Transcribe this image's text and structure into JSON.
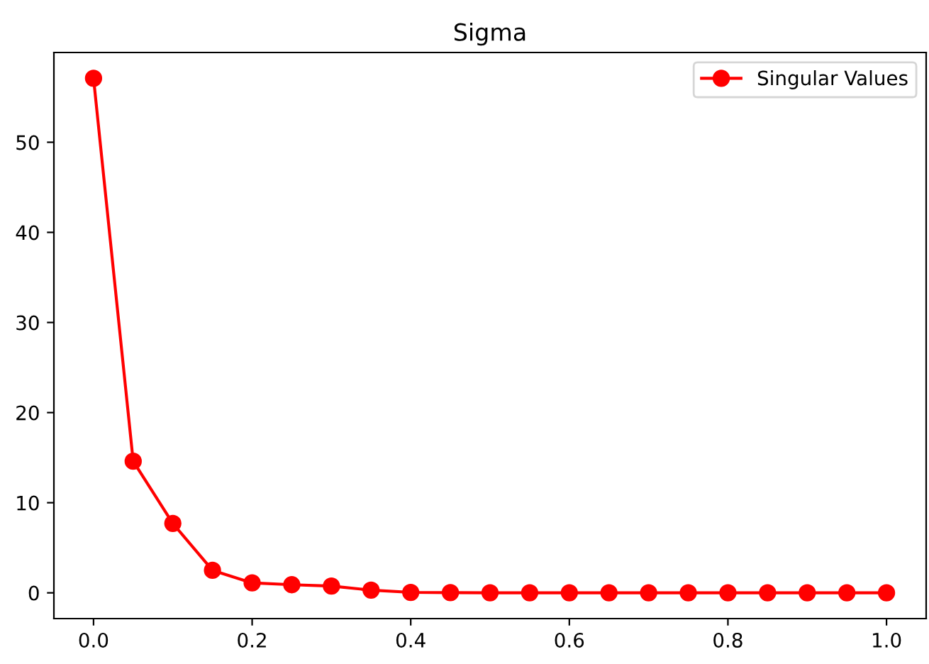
{
  "chart_data": {
    "type": "line",
    "title": "Sigma",
    "x": [
      0.0,
      0.05,
      0.1,
      0.15,
      0.2,
      0.25,
      0.3,
      0.35,
      0.4,
      0.45,
      0.5,
      0.55,
      0.6,
      0.65,
      0.7,
      0.75,
      0.8,
      0.85,
      0.9,
      0.95,
      1.0
    ],
    "series": [
      {
        "name": "Singular Values",
        "color": "#ff0000",
        "values": [
          57.1,
          14.6,
          7.7,
          2.5,
          1.1,
          0.9,
          0.75,
          0.3,
          0.05,
          0.02,
          0.01,
          0.01,
          0.01,
          0.0,
          0.0,
          0.0,
          0.0,
          0.0,
          0.0,
          0.0,
          0.0
        ]
      }
    ],
    "xlim": [
      -0.05,
      1.05
    ],
    "xticks": [
      {
        "value": 0.0,
        "label": "0.0"
      },
      0.2,
      0.4,
      0.6,
      0.8,
      {
        "value": 1.0,
        "label": "1.0"
      }
    ],
    "ylim": [
      -2.86,
      59.96
    ],
    "yticks": [
      0,
      10,
      20,
      30,
      40,
      50
    ],
    "grid": false,
    "legend": "upper right",
    "marker": "circle",
    "line_style": "solid"
  }
}
